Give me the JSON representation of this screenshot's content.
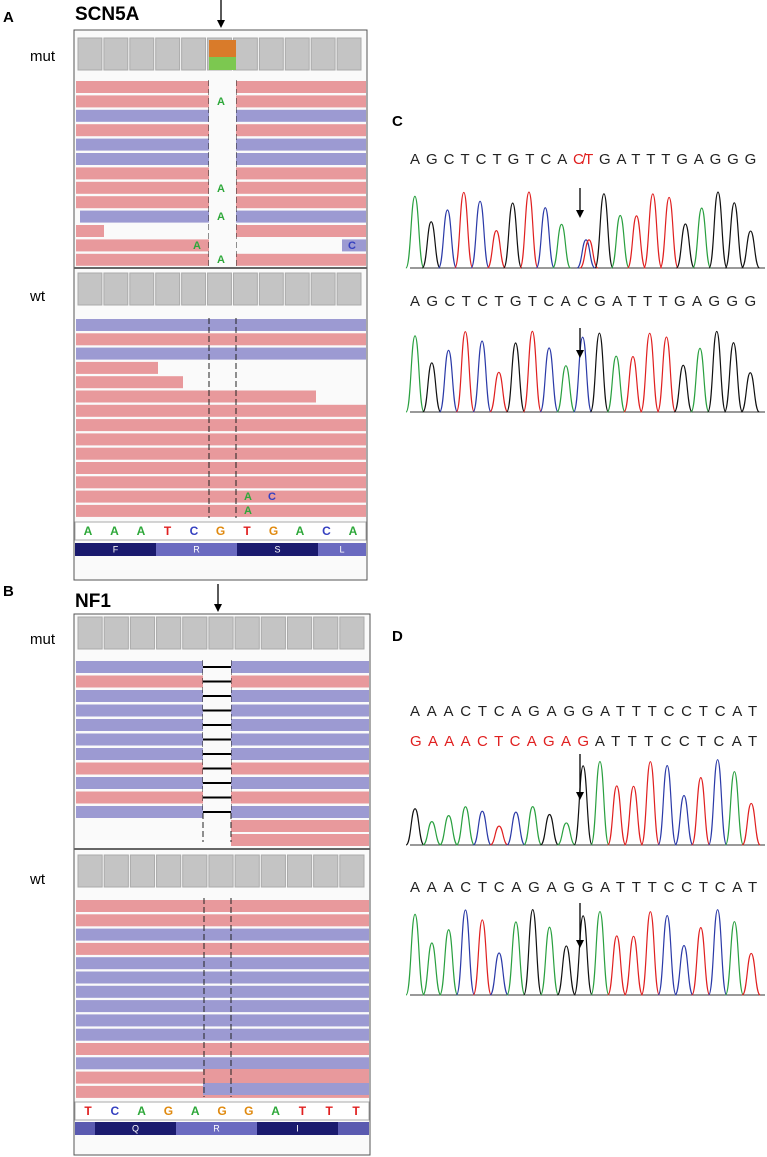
{
  "figure": {
    "panel_a": {
      "label": "A",
      "gene": "SCN5A",
      "mut_label": "mut",
      "wt_label": "wt",
      "mut_mismatches": [
        "A",
        "A",
        "A",
        "A",
        "C",
        "A"
      ],
      "wt_mismatches": [
        "A",
        "C",
        "A"
      ],
      "reference": [
        "A",
        "A",
        "A",
        "T",
        "C",
        "G",
        "T",
        "G",
        "A",
        "C",
        "A"
      ],
      "amino_acids": [
        "F",
        "R",
        "S",
        "L"
      ]
    },
    "panel_b": {
      "label": "B",
      "gene": "NF1",
      "mut_label": "mut",
      "wt_label": "wt",
      "reference": [
        "T",
        "C",
        "A",
        "G",
        "A",
        "G",
        "G",
        "A",
        "T",
        "T",
        "T"
      ],
      "amino_acids": [
        "Q",
        "R",
        "I"
      ]
    },
    "panel_c": {
      "label": "C",
      "sequences": [
        {
          "parts": [
            {
              "text": "AGCTCTGTCA",
              "color": "#222222"
            },
            {
              "text": "C/T",
              "color": "#e02020"
            },
            {
              "text": "GATTTGAGGG",
              "color": "#222222"
            }
          ]
        },
        {
          "parts": [
            {
              "text": "AGCTCTGTCACGATTTGAGGG",
              "color": "#222222"
            }
          ]
        }
      ]
    },
    "panel_d": {
      "label": "D",
      "sequences": [
        {
          "parts": [
            {
              "text": "AAACTCAGAGGATTTCCTCAT",
              "color": "#222222"
            }
          ]
        },
        {
          "parts": [
            {
              "text": "GAAACTCAGAG",
              "color": "#e02020"
            },
            {
              "text": "ATTTCCTCAT",
              "color": "#222222"
            }
          ]
        },
        {
          "parts": [
            {
              "text": "AAACTCAGAGGATTTCCTCAT",
              "color": "#222222"
            }
          ]
        }
      ]
    }
  }
}
